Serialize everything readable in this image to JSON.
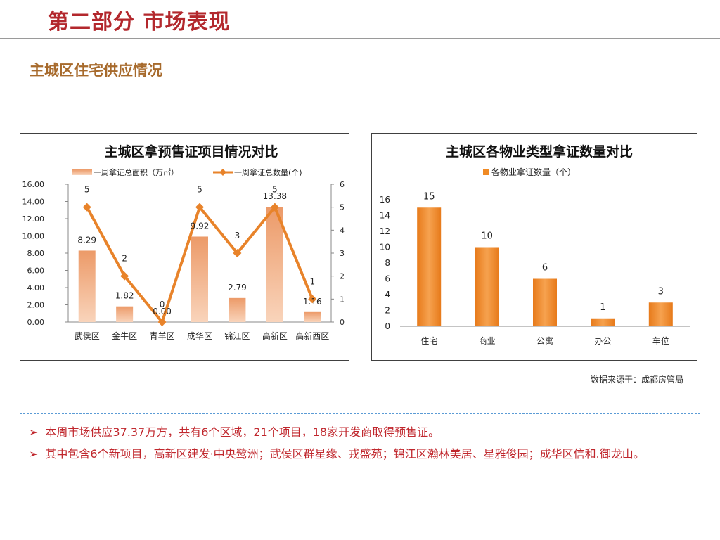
{
  "page": {
    "title": "第二部分 市场表现",
    "section_title": "主城区住宅供应情况",
    "source_note": "数据来源于：成都房管局"
  },
  "summary": {
    "bullet_symbol": "➢",
    "bullets": [
      "本周市场供应37.37万方，共有6个区域，21个项目，18家开发商取得预售证。",
      "其中包含6个新项目，高新区建发·中央鹭洲；武侯区群星缘、戎盛苑；锦江区瀚林美居、星雅俊园；成华区信和.御龙山。"
    ]
  },
  "chart_data": [
    {
      "type": "bar+line",
      "title": "主城区拿预售证项目情况对比",
      "categories": [
        "武侯区",
        "金牛区",
        "青羊区",
        "成华区",
        "锦江区",
        "高新区",
        "高新西区"
      ],
      "series": [
        {
          "name": "一周拿证总面积（万㎡）",
          "type": "bar",
          "axis": "left",
          "values": [
            8.29,
            1.82,
            0.0,
            9.92,
            2.79,
            13.38,
            1.16
          ],
          "labels": [
            "8.29",
            "1.82",
            "0.00",
            "9.92",
            "2.79",
            "13.38",
            "1.16"
          ],
          "color": "#f0a97a"
        },
        {
          "name": "一周拿证总数量(个)",
          "type": "line",
          "axis": "right",
          "values": [
            5,
            2,
            0,
            5,
            3,
            5,
            1
          ],
          "labels": [
            "5",
            "2",
            "0",
            "5",
            "3",
            "5",
            "1"
          ],
          "color": "#e8832a"
        }
      ],
      "y_left": {
        "range": [
          0,
          16
        ],
        "ticks": [
          "0.00",
          "2.00",
          "4.00",
          "6.00",
          "8.00",
          "10.00",
          "12.00",
          "14.00",
          "16.00"
        ]
      },
      "y_right": {
        "range": [
          0,
          6
        ],
        "ticks": [
          "0",
          "1",
          "2",
          "3",
          "4",
          "5",
          "6"
        ]
      },
      "legend": "top",
      "grid": false
    },
    {
      "type": "bar",
      "title": "主城区各物业类型拿证数量对比",
      "categories": [
        "住宅",
        "商业",
        "公寓",
        "办公",
        "车位"
      ],
      "series": [
        {
          "name": "各物业拿证数量（个）",
          "values": [
            15,
            10,
            6,
            1,
            3
          ],
          "labels": [
            "15",
            "10",
            "6",
            "1",
            "3"
          ],
          "color": "#f08a24"
        }
      ],
      "y": {
        "range": [
          0,
          16
        ],
        "ticks": [
          "0",
          "2",
          "4",
          "6",
          "8",
          "10",
          "12",
          "14",
          "16"
        ]
      },
      "legend": "top",
      "grid": false
    }
  ]
}
